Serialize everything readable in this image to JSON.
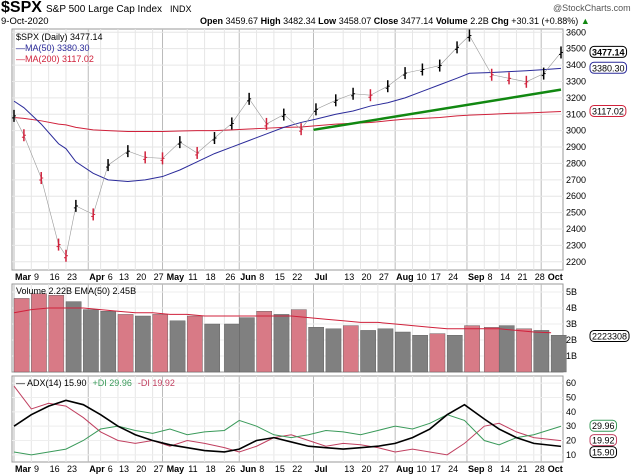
{
  "header": {
    "symbol": "$SPX",
    "name": "S&P 500 Large Cap Index",
    "exchange": "INDX",
    "date": "9-Oct-2020",
    "source": "@StockCharts.com",
    "open_label": "Open",
    "open": "3459.67",
    "high_label": "High",
    "high": "3482.34",
    "low_label": "Low",
    "low": "3458.07",
    "close_label": "Close",
    "close": "3477.14",
    "volume_label": "Volume",
    "volume": "2.2B",
    "chg_label": "Chg",
    "chg": "+30.31 (+0.88%)"
  },
  "colors": {
    "price_up": "#000000",
    "price_down": "#d0213b",
    "ma50": "#2b2b9a",
    "ma200": "#d0213b",
    "trendline": "#118811",
    "plus_di": "#3a9a5a",
    "minus_di": "#c04060",
    "adx": "#000000",
    "volume_up": "#808080",
    "volume_down": "#d87a86",
    "arrow": "#808080"
  },
  "chart_data": [
    {
      "type": "line",
      "panel": "price",
      "legend": [
        "$SPX (Daily) 3477.14",
        "MA(50) 3380.30",
        "MA(200) 3117.02"
      ],
      "ylim": [
        2150,
        3620
      ],
      "yticks": [
        2200,
        2300,
        2400,
        2500,
        2600,
        2700,
        2800,
        2900,
        3000,
        3100,
        3200,
        3300,
        3400,
        3500,
        3600
      ],
      "x_tick_labels": [
        [
          "Mar",
          "2020-03-02",
          true
        ],
        [
          "9",
          "2020-03-09"
        ],
        [
          "16",
          "2020-03-16"
        ],
        [
          "23",
          "2020-03-23"
        ],
        [
          "Apr",
          "2020-04-01",
          true
        ],
        [
          "6",
          "2020-04-06"
        ],
        [
          "13",
          "2020-04-13"
        ],
        [
          "20",
          "2020-04-20"
        ],
        [
          "27",
          "2020-04-27"
        ],
        [
          "May",
          "2020-05-01",
          true
        ],
        [
          "11",
          "2020-05-11"
        ],
        [
          "18",
          "2020-05-18"
        ],
        [
          "26",
          "2020-05-26"
        ],
        [
          "Jun",
          "2020-06-01",
          true
        ],
        [
          "8",
          "2020-06-08"
        ],
        [
          "15",
          "2020-06-15"
        ],
        [
          "22",
          "2020-06-22"
        ],
        [
          "Jul",
          "2020-07-01",
          true
        ],
        [
          "13",
          "2020-07-13"
        ],
        [
          "20",
          "2020-07-20"
        ],
        [
          "27",
          "2020-07-27"
        ],
        [
          "Aug",
          "2020-08-03",
          true
        ],
        [
          "10",
          "2020-08-10"
        ],
        [
          "17",
          "2020-08-17"
        ],
        [
          "24",
          "2020-08-24"
        ],
        [
          "Sep",
          "2020-09-01",
          true
        ],
        [
          "8",
          "2020-09-08"
        ],
        [
          "14",
          "2020-09-14"
        ],
        [
          "21",
          "2020-09-21"
        ],
        [
          "28",
          "2020-09-28"
        ],
        [
          "Oct",
          "2020-10-01",
          true
        ]
      ],
      "x": [
        "2020-03-02",
        "2020-03-06",
        "2020-03-13",
        "2020-03-20",
        "2020-03-23",
        "2020-03-27",
        "2020-04-03",
        "2020-04-09",
        "2020-04-17",
        "2020-04-24",
        "2020-05-01",
        "2020-05-08",
        "2020-05-15",
        "2020-05-22",
        "2020-05-29",
        "2020-06-05",
        "2020-06-12",
        "2020-06-19",
        "2020-06-26",
        "2020-07-02",
        "2020-07-10",
        "2020-07-17",
        "2020-07-24",
        "2020-07-31",
        "2020-08-07",
        "2020-08-14",
        "2020-08-21",
        "2020-08-28",
        "2020-09-02",
        "2020-09-11",
        "2020-09-18",
        "2020-09-25",
        "2020-10-02",
        "2020-10-09"
      ],
      "series": [
        {
          "name": "$SPX (Daily)",
          "values": [
            3090,
            2972,
            2711,
            2305,
            2237,
            2541,
            2489,
            2790,
            2875,
            2837,
            2831,
            2930,
            2864,
            2955,
            3044,
            3194,
            3041,
            3098,
            3009,
            3130,
            3185,
            3225,
            3216,
            3271,
            3351,
            3373,
            3397,
            3508,
            3580,
            3341,
            3319,
            3298,
            3348,
            3477
          ]
        },
        {
          "name": "MA(50)",
          "values": [
            3180,
            3140,
            3040,
            2920,
            2890,
            2810,
            2740,
            2700,
            2690,
            2700,
            2720,
            2760,
            2810,
            2860,
            2900,
            2940,
            2980,
            3020,
            3050,
            3070,
            3100,
            3120,
            3150,
            3170,
            3200,
            3240,
            3280,
            3320,
            3350,
            3355,
            3360,
            3365,
            3372,
            3380
          ]
        },
        {
          "name": "MA(200)",
          "values": [
            3080,
            3075,
            3060,
            3040,
            3035,
            3020,
            3005,
            3000,
            2995,
            2995,
            2995,
            2998,
            3000,
            3000,
            3005,
            3010,
            3015,
            3020,
            3022,
            3030,
            3040,
            3045,
            3050,
            3060,
            3070,
            3075,
            3080,
            3090,
            3095,
            3100,
            3105,
            3108,
            3112,
            3117
          ]
        }
      ],
      "trendline": {
        "from": [
          "2020-07-01",
          3005
        ],
        "to": [
          "2020-10-09",
          3250
        ]
      },
      "last_value_labels": [
        "3477.14",
        "3380.30",
        "3117.02"
      ]
    },
    {
      "type": "bar",
      "panel": "volume",
      "legend": "Volume 2.22B EMA(50) 2.45B",
      "ylim": [
        0,
        5.5
      ],
      "yticks": [
        "5B",
        "4B",
        "3B",
        "2B",
        "1B"
      ],
      "last_value_label": "2223308",
      "x": [
        "2020-03-02",
        "2020-03-09",
        "2020-03-16",
        "2020-03-23",
        "2020-03-30",
        "2020-04-06",
        "2020-04-13",
        "2020-04-20",
        "2020-04-27",
        "2020-05-04",
        "2020-05-11",
        "2020-05-18",
        "2020-05-26",
        "2020-06-01",
        "2020-06-08",
        "2020-06-15",
        "2020-06-22",
        "2020-06-29",
        "2020-07-06",
        "2020-07-13",
        "2020-07-20",
        "2020-07-27",
        "2020-08-03",
        "2020-08-10",
        "2020-08-17",
        "2020-08-24",
        "2020-08-31",
        "2020-09-08",
        "2020-09-14",
        "2020-09-21",
        "2020-09-28",
        "2020-10-05"
      ],
      "values": [
        4.6,
        4.9,
        4.8,
        4.4,
        3.9,
        3.8,
        3.6,
        3.5,
        3.6,
        3.2,
        3.5,
        3.0,
        3.0,
        3.4,
        3.8,
        3.6,
        3.9,
        2.8,
        2.7,
        2.9,
        2.6,
        2.7,
        2.5,
        2.3,
        2.4,
        2.3,
        2.9,
        2.8,
        2.9,
        2.7,
        2.6,
        2.3
      ],
      "down": [
        true,
        true,
        true,
        false,
        false,
        false,
        true,
        false,
        true,
        false,
        true,
        false,
        false,
        false,
        true,
        false,
        true,
        false,
        false,
        true,
        false,
        false,
        false,
        false,
        true,
        false,
        true,
        true,
        false,
        true,
        false,
        false
      ],
      "ema50": [
        3.7,
        3.9,
        4.0,
        4.0,
        4.0,
        3.9,
        3.8,
        3.7,
        3.7,
        3.6,
        3.6,
        3.5,
        3.5,
        3.5,
        3.5,
        3.5,
        3.5,
        3.4,
        3.3,
        3.2,
        3.1,
        3.1,
        3.0,
        2.9,
        2.8,
        2.7,
        2.7,
        2.7,
        2.7,
        2.6,
        2.5,
        2.45
      ]
    },
    {
      "type": "line",
      "panel": "adx",
      "legend": {
        "adx": "ADX(14) 15.90",
        "plus_di": "+DI 29.96",
        "minus_di": "-DI 19.92"
      },
      "ylim": [
        5,
        65
      ],
      "yticks": [
        60,
        50,
        40,
        30,
        20,
        10
      ],
      "last_value_labels": [
        "29.96",
        "19.92",
        "15.90"
      ],
      "x": [
        "2020-03-02",
        "2020-03-09",
        "2020-03-16",
        "2020-03-23",
        "2020-03-30",
        "2020-04-06",
        "2020-04-13",
        "2020-04-20",
        "2020-04-27",
        "2020-05-04",
        "2020-05-11",
        "2020-05-18",
        "2020-05-26",
        "2020-06-01",
        "2020-06-08",
        "2020-06-15",
        "2020-06-22",
        "2020-06-29",
        "2020-07-06",
        "2020-07-13",
        "2020-07-20",
        "2020-07-27",
        "2020-08-03",
        "2020-08-10",
        "2020-08-17",
        "2020-08-24",
        "2020-08-31",
        "2020-09-08",
        "2020-09-14",
        "2020-09-21",
        "2020-09-28",
        "2020-10-09"
      ],
      "series": [
        {
          "name": "ADX(14)",
          "values": [
            30,
            38,
            44,
            48,
            45,
            38,
            30,
            24,
            20,
            17,
            15,
            13,
            12,
            14,
            20,
            22,
            19,
            16,
            15,
            14,
            15,
            16,
            18,
            22,
            28,
            38,
            45,
            35,
            28,
            22,
            18,
            15.9
          ]
        },
        {
          "name": "+DI",
          "values": [
            12,
            10,
            12,
            14,
            20,
            28,
            30,
            27,
            25,
            28,
            24,
            26,
            27,
            34,
            30,
            24,
            22,
            24,
            27,
            26,
            24,
            27,
            30,
            28,
            32,
            38,
            34,
            20,
            17,
            22,
            24,
            29.96
          ]
        },
        {
          "name": "-DI",
          "values": [
            58,
            42,
            46,
            44,
            36,
            26,
            20,
            18,
            20,
            16,
            20,
            18,
            15,
            12,
            16,
            22,
            24,
            20,
            16,
            18,
            17,
            15,
            12,
            14,
            12,
            10,
            18,
            30,
            32,
            26,
            22,
            19.92
          ]
        }
      ]
    }
  ]
}
